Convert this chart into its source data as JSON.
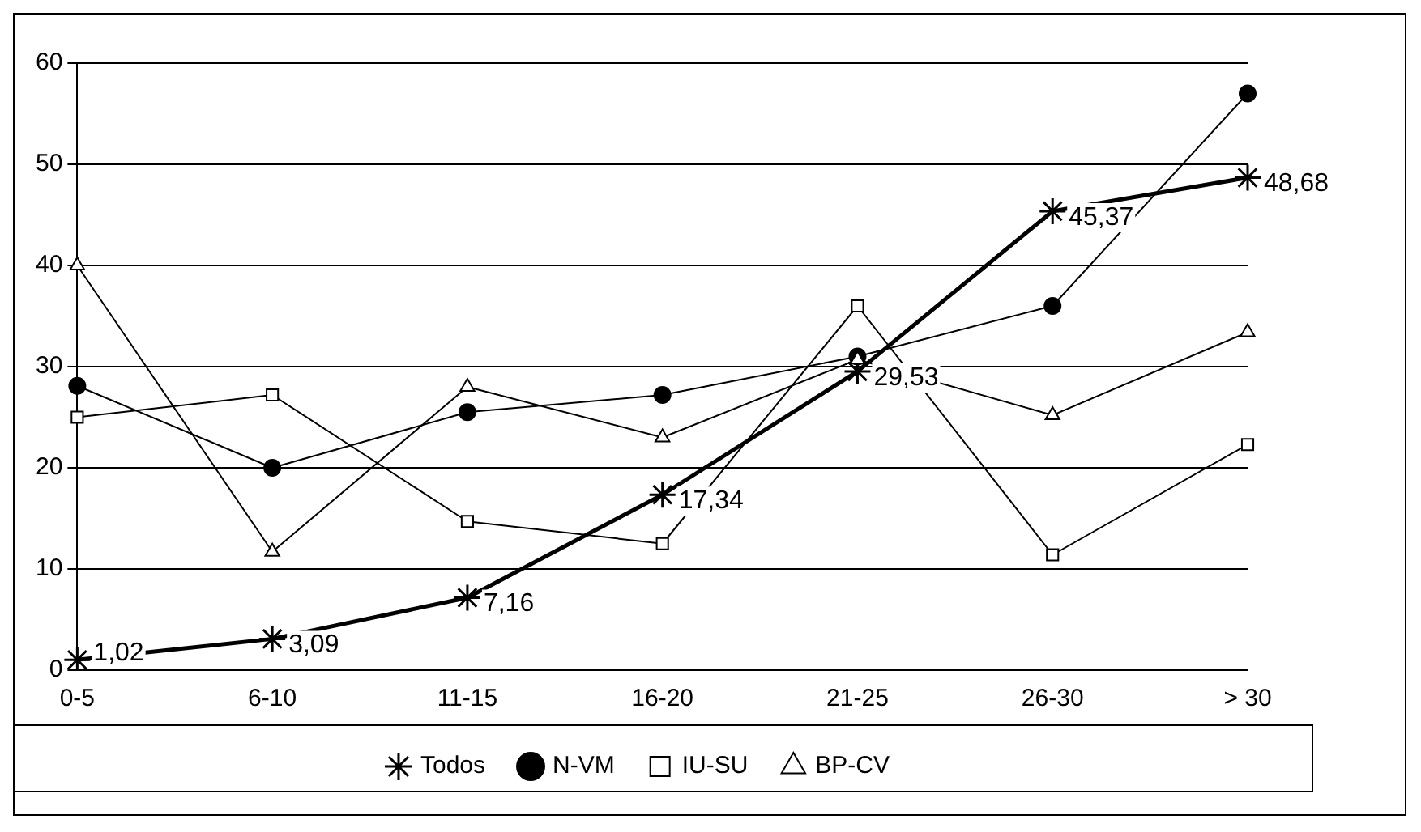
{
  "chart_data": {
    "type": "line",
    "categories": [
      "0-5",
      "6-10",
      "11-15",
      "16-20",
      "21-25",
      "26-30",
      "> 30"
    ],
    "series": [
      {
        "name": "Todos",
        "color": "#000000",
        "marker": "cross",
        "values": [
          1.02,
          3.09,
          7.16,
          17.34,
          29.53,
          45.37,
          48.68
        ],
        "value_labels": [
          "1,02",
          "3,09",
          "7,16",
          "17,34",
          "29,53",
          "45,37",
          "48,68"
        ]
      },
      {
        "name": "N-VM",
        "color": "#000000",
        "marker": "circle",
        "values": [
          28.1,
          20,
          25.5,
          27.2,
          31,
          36,
          57
        ]
      },
      {
        "name": "IU-SU",
        "color": "#000000",
        "marker": "square",
        "values": [
          25,
          27.2,
          14.7,
          12.5,
          36,
          11.4,
          22.3
        ]
      },
      {
        "name": "BP-CV",
        "color": "#000000",
        "marker": "triangle",
        "values": [
          40,
          11.7,
          28,
          23,
          30.7,
          25.2,
          33.4
        ]
      }
    ],
    "ylim": [
      0,
      60
    ],
    "yticks": [
      0,
      10,
      20,
      30,
      40,
      50,
      60
    ],
    "grid": "y",
    "legend": "bottom"
  }
}
